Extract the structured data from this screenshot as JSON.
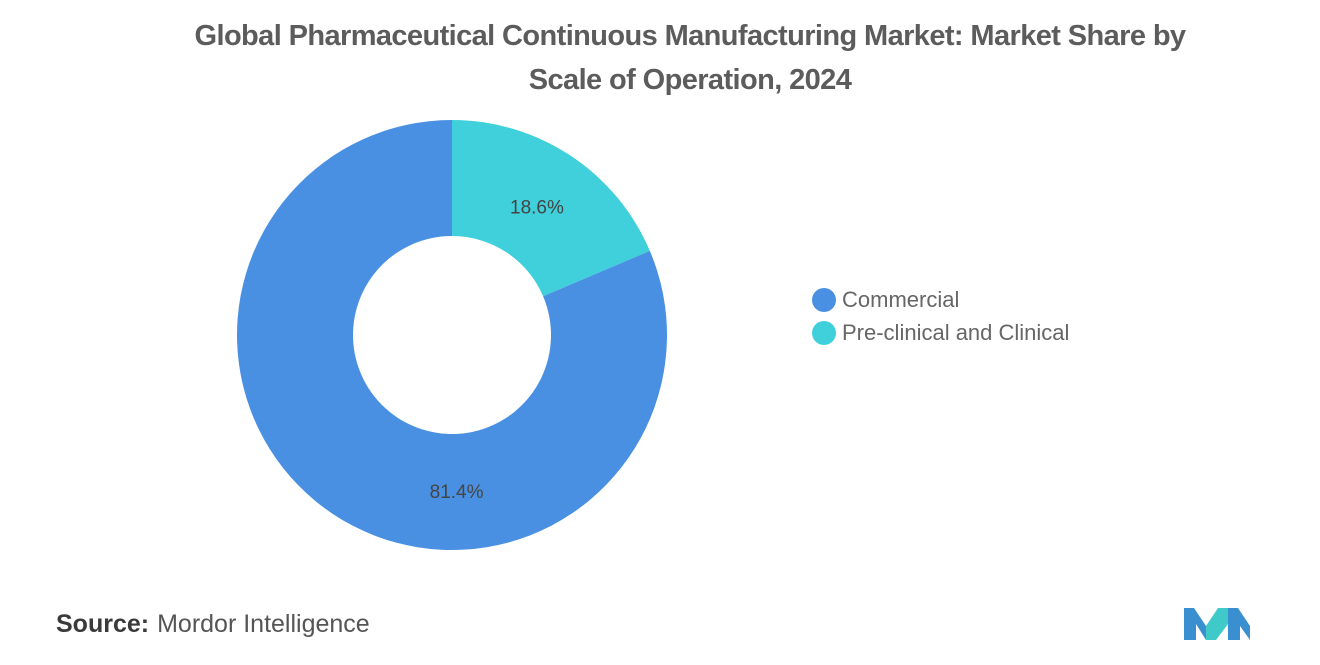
{
  "title_lines": [
    "Global Pharmaceutical Continuous Manufacturing Market: Market Share by",
    "Scale of Operation, 2024"
  ],
  "chart_data": {
    "type": "pie",
    "donut": true,
    "title": "Global Pharmaceutical Continuous Manufacturing Market: Market Share by Scale of Operation, 2024",
    "categories": [
      "Commercial",
      "Pre-clinical and Clinical"
    ],
    "values": [
      81.4,
      18.6
    ],
    "data_labels": [
      "81.4%",
      "18.6%"
    ],
    "unit": "%",
    "colors": [
      "#4a90e2",
      "#3fd0db"
    ],
    "legend_position": "right"
  },
  "source": {
    "label": "Source:",
    "value": "Mordor Intelligence"
  },
  "logo": {
    "icon": "mordor-intelligence-logo",
    "colors": [
      "#3a8fd0",
      "#3fc9c9"
    ]
  }
}
